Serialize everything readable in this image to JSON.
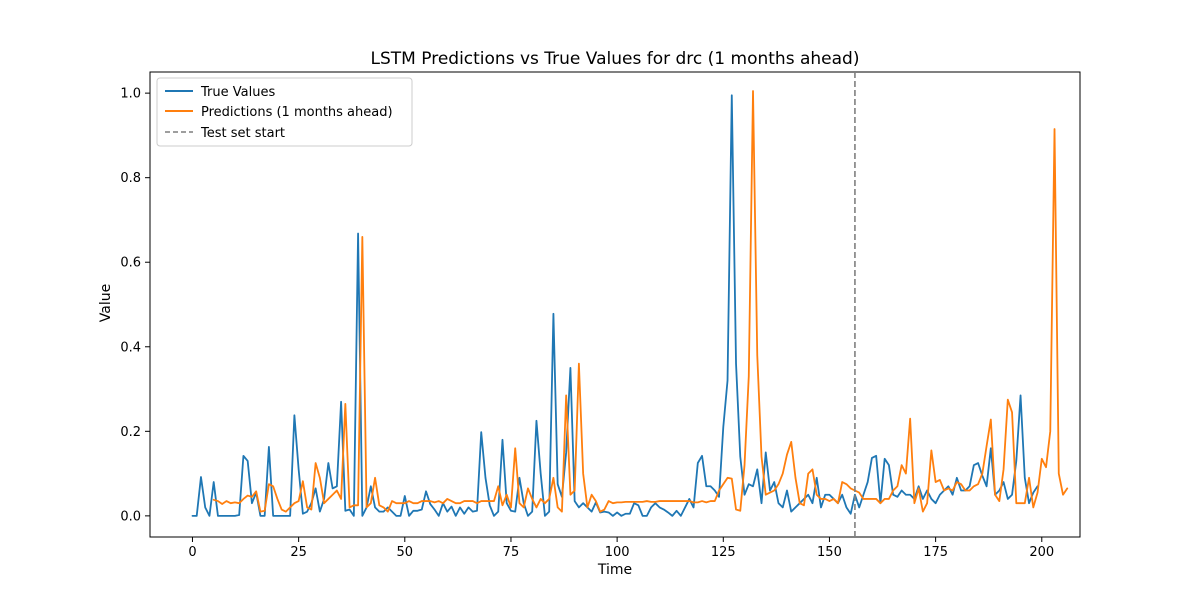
{
  "chart_data": {
    "type": "line",
    "title": "LSTM Predictions vs True Values for drc (1 months ahead)",
    "xlabel": "Time",
    "ylabel": "Value",
    "xlim": [
      -10,
      209
    ],
    "ylim": [
      -0.05,
      1.05
    ],
    "xticks": [
      0,
      25,
      50,
      75,
      100,
      125,
      150,
      175,
      200
    ],
    "yticks": [
      0.0,
      0.2,
      0.4,
      0.6,
      0.8,
      1.0
    ],
    "xtick_labels": [
      "0",
      "25",
      "50",
      "75",
      "100",
      "125",
      "150",
      "175",
      "200"
    ],
    "ytick_labels": [
      "0.0",
      "0.2",
      "0.4",
      "0.6",
      "0.8",
      "1.0"
    ],
    "legend_position": "upper-left",
    "grid": false,
    "series": [
      {
        "name": "True Values",
        "color": "#1f77b4",
        "x_start": 0,
        "values": [
          0.0,
          0.0,
          0.092,
          0.02,
          0.0,
          0.08,
          0.0,
          0.0,
          0.0,
          0.0,
          0.0,
          0.002,
          0.142,
          0.13,
          0.03,
          0.055,
          0.0,
          0.0,
          0.163,
          0.0,
          0.0,
          0.0,
          0.0,
          0.0,
          0.238,
          0.11,
          0.005,
          0.01,
          0.03,
          0.065,
          0.01,
          0.04,
          0.125,
          0.065,
          0.07,
          0.27,
          0.012,
          0.015,
          0.0,
          0.668,
          0.0,
          0.02,
          0.07,
          0.02,
          0.01,
          0.01,
          0.02,
          0.01,
          0.0,
          0.0,
          0.047,
          0.0,
          0.012,
          0.012,
          0.015,
          0.058,
          0.028,
          0.015,
          0.0,
          0.03,
          0.01,
          0.022,
          0.0,
          0.02,
          0.005,
          0.02,
          0.01,
          0.012,
          0.198,
          0.09,
          0.025,
          0.0,
          0.01,
          0.18,
          0.03,
          0.012,
          0.01,
          0.09,
          0.03,
          0.0,
          0.01,
          0.225,
          0.1,
          0.0,
          0.01,
          0.478,
          0.075,
          0.045,
          0.15,
          0.35,
          0.035,
          0.02,
          0.03,
          0.02,
          0.01,
          0.032,
          0.008,
          0.01,
          0.008,
          0.0,
          0.008,
          0.0,
          0.005,
          0.005,
          0.03,
          0.025,
          0.0,
          0.0,
          0.02,
          0.03,
          0.02,
          0.015,
          0.008,
          0.0,
          0.012,
          0.0,
          0.02,
          0.04,
          0.02,
          0.125,
          0.142,
          0.07,
          0.07,
          0.06,
          0.045,
          0.21,
          0.32,
          0.995,
          0.36,
          0.14,
          0.05,
          0.075,
          0.07,
          0.11,
          0.03,
          0.15,
          0.06,
          0.08,
          0.03,
          0.02,
          0.06,
          0.01,
          0.02,
          0.03,
          0.04,
          0.05,
          0.03,
          0.09,
          0.02,
          0.05,
          0.05,
          0.04,
          0.03,
          0.05,
          0.02,
          0.005,
          0.05,
          0.02,
          0.05,
          0.08,
          0.137,
          0.142,
          0.03,
          0.135,
          0.12,
          0.05,
          0.045,
          0.06,
          0.05,
          0.05,
          0.04,
          0.07,
          0.04,
          0.06,
          0.04,
          0.03,
          0.05,
          0.06,
          0.07,
          0.05,
          0.09,
          0.06,
          0.06,
          0.07,
          0.12,
          0.125,
          0.095,
          0.07,
          0.16,
          0.05,
          0.06,
          0.08,
          0.04,
          0.05,
          0.13,
          0.285,
          0.09,
          0.03,
          0.055,
          0.07
        ]
      },
      {
        "name": "Predictions (1 months ahead)",
        "color": "#ff7f0e",
        "x_start": 5,
        "values": [
          0.038,
          0.035,
          0.028,
          0.035,
          0.03,
          0.032,
          0.03,
          0.04,
          0.048,
          0.045,
          0.058,
          0.01,
          0.012,
          0.075,
          0.07,
          0.04,
          0.015,
          0.01,
          0.02,
          0.03,
          0.035,
          0.082,
          0.02,
          0.015,
          0.125,
          0.09,
          0.03,
          0.04,
          0.05,
          0.06,
          0.04,
          0.265,
          0.02,
          0.025,
          0.025,
          0.66,
          0.02,
          0.03,
          0.09,
          0.025,
          0.02,
          0.01,
          0.035,
          0.03,
          0.03,
          0.03,
          0.035,
          0.03,
          0.03,
          0.035,
          0.035,
          0.035,
          0.032,
          0.035,
          0.03,
          0.04,
          0.035,
          0.03,
          0.03,
          0.035,
          0.035,
          0.035,
          0.03,
          0.035,
          0.035,
          0.035,
          0.035,
          0.07,
          0.025,
          0.05,
          0.02,
          0.16,
          0.03,
          0.02,
          0.065,
          0.04,
          0.02,
          0.04,
          0.03,
          0.04,
          0.09,
          0.02,
          0.01,
          0.285,
          0.05,
          0.06,
          0.36,
          0.1,
          0.02,
          0.05,
          0.035,
          0.01,
          0.015,
          0.035,
          0.03,
          0.032,
          0.032,
          0.033,
          0.033,
          0.033,
          0.033,
          0.033,
          0.035,
          0.033,
          0.033,
          0.035,
          0.035,
          0.035,
          0.035,
          0.035,
          0.035,
          0.035,
          0.035,
          0.032,
          0.032,
          0.035,
          0.032,
          0.035,
          0.035,
          0.06,
          0.075,
          0.09,
          0.088,
          0.015,
          0.012,
          0.12,
          0.33,
          1.005,
          0.38,
          0.14,
          0.05,
          0.055,
          0.06,
          0.075,
          0.1,
          0.145,
          0.175,
          0.09,
          0.03,
          0.025,
          0.1,
          0.11,
          0.05,
          0.04,
          0.04,
          0.035,
          0.04,
          0.03,
          0.08,
          0.075,
          0.065,
          0.06,
          0.055,
          0.04,
          0.04,
          0.04,
          0.04,
          0.03,
          0.04,
          0.04,
          0.06,
          0.07,
          0.12,
          0.1,
          0.23,
          0.03,
          0.065,
          0.01,
          0.03,
          0.155,
          0.08,
          0.085,
          0.06,
          0.065,
          0.06,
          0.08,
          0.075,
          0.06,
          0.06,
          0.07,
          0.075,
          0.1,
          0.165,
          0.228,
          0.05,
          0.035,
          0.11,
          0.275,
          0.245,
          0.03,
          0.03,
          0.03,
          0.09,
          0.02,
          0.055,
          0.135,
          0.115,
          0.2,
          0.915,
          0.1,
          0.05,
          0.065
        ]
      }
    ],
    "reference_line": {
      "name": "Test set start",
      "x": 156,
      "color": "#7f7f7f",
      "style": "dashed"
    }
  }
}
